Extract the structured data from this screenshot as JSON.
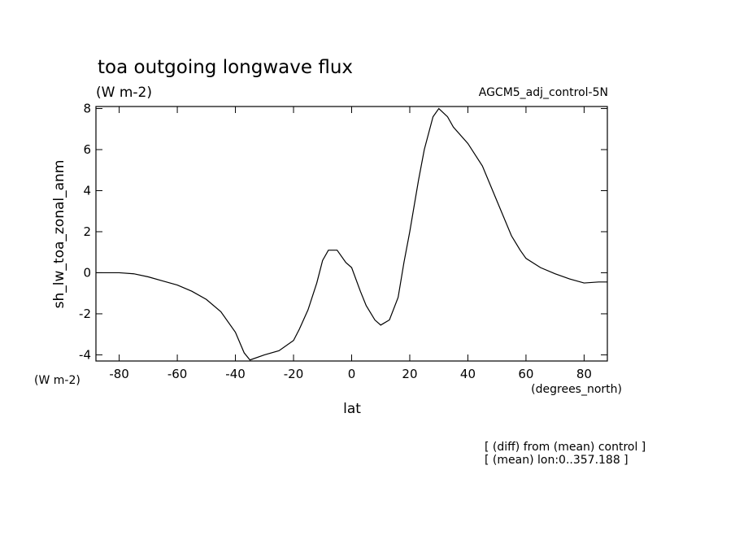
{
  "chart_data": {
    "type": "line",
    "title": "toa outgoing longwave flux",
    "subtitle": "(W m-2)",
    "run_label": "AGCM5_adj_control-5N",
    "ylabel": "sh_lw_toa_zonal_anm",
    "y_units": "(W m-2)",
    "x_units": "(degrees_north)",
    "xlabel": "lat",
    "notes": [
      "[ (diff) from (mean) control ]",
      "[ (mean) lon:0..357.188 ]"
    ],
    "x": [
      -88,
      -80,
      -75,
      -70,
      -65,
      -60,
      -55,
      -50,
      -45,
      -40,
      -37,
      -35,
      -30,
      -25,
      -20,
      -18,
      -15,
      -12,
      -10,
      -8,
      -5,
      -2,
      0,
      3,
      5,
      8,
      10,
      13,
      16,
      18,
      20,
      23,
      25,
      28,
      30,
      33,
      35,
      40,
      45,
      50,
      55,
      58,
      60,
      65,
      70,
      75,
      80,
      85,
      88
    ],
    "series": [
      {
        "name": "sh_lw_toa_zonal_anm",
        "color": "#000000",
        "values": [
          0,
          0,
          -0.05,
          -0.2,
          -0.4,
          -0.6,
          -0.9,
          -1.3,
          -1.9,
          -2.9,
          -3.9,
          -4.25,
          -4.0,
          -3.8,
          -3.3,
          -2.75,
          -1.8,
          -0.5,
          0.6,
          1.1,
          1.1,
          0.5,
          0.25,
          -0.9,
          -1.6,
          -2.3,
          -2.55,
          -2.3,
          -1.2,
          0.5,
          2,
          4.5,
          6,
          7.6,
          8,
          7.6,
          7.1,
          6.3,
          5.2,
          3.5,
          1.8,
          1.1,
          0.7,
          0.25,
          -0.05,
          -0.3,
          -0.5,
          -0.45,
          -0.45
        ]
      }
    ],
    "xlim": [
      -88,
      88
    ],
    "ylim": [
      -4.3,
      8.1
    ],
    "xticks": [
      -80,
      -60,
      -40,
      -20,
      0,
      20,
      40,
      60,
      80
    ],
    "yticks": [
      -4,
      -2,
      0,
      2,
      4,
      6,
      8
    ]
  }
}
